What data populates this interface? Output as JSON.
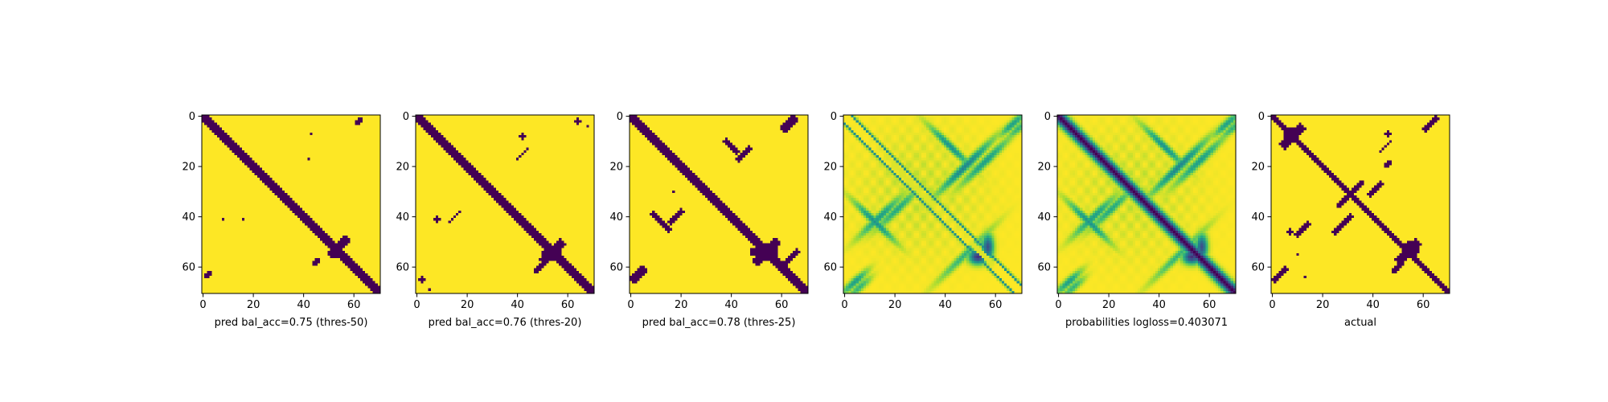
{
  "chart_data": [
    {
      "type": "heatmap",
      "xlabel": "pred bal_acc=0.75 (thres-50)",
      "xticks": [
        0,
        20,
        40,
        60
      ],
      "yticks": [
        0,
        20,
        40,
        60
      ],
      "xlim": [
        0,
        71
      ],
      "ylim": [
        71,
        0
      ],
      "matrix_size": 71,
      "colormap": "viridis",
      "colors": {
        "low": "#440154",
        "high": "#fde725"
      },
      "grid": false,
      "diagonal_band_halfwidth": 2,
      "features": [
        {
          "kind": "band",
          "rc": [
            52,
            54
          ],
          "dir": "anti",
          "len": 5,
          "width": 1.6
        },
        {
          "kind": "block",
          "r": [
            53,
            56
          ],
          "c": [
            52,
            56
          ]
        },
        {
          "kind": "band",
          "rc": [
            58,
            45
          ],
          "dir": "anti",
          "len": 2,
          "width": 1.0
        },
        {
          "kind": "spot",
          "r": 7,
          "c": 43,
          "rad": 0.6
        },
        {
          "kind": "spot",
          "r": 17,
          "c": 42,
          "rad": 0.6
        },
        {
          "kind": "spot",
          "r": 41,
          "c": 8,
          "rad": 0.6
        },
        {
          "kind": "spot",
          "r": 41,
          "c": 16,
          "rad": 0.8
        },
        {
          "kind": "band",
          "rc": [
            63,
            2
          ],
          "dir": "anti",
          "len": 2,
          "width": 1.0
        },
        {
          "kind": "band",
          "rc": [
            2,
            62
          ],
          "dir": "anti",
          "len": 2,
          "width": 1.0
        }
      ]
    },
    {
      "type": "heatmap",
      "xlabel": "pred bal_acc=0.76 (thres-20)",
      "xticks": [
        0,
        20,
        40,
        60
      ],
      "yticks": [
        0,
        20,
        40,
        60
      ],
      "xlim": [
        0,
        71
      ],
      "ylim": [
        71,
        0
      ],
      "matrix_size": 71,
      "colormap": "viridis",
      "colors": {
        "low": "#440154",
        "high": "#fde725"
      },
      "grid": false,
      "diagonal_band_halfwidth": 2.3,
      "features": [
        {
          "kind": "band",
          "rc": [
            54,
            54
          ],
          "dir": "anti",
          "len": 6,
          "width": 1.8
        },
        {
          "kind": "block",
          "r": [
            52,
            57
          ],
          "c": [
            50,
            57
          ]
        },
        {
          "kind": "band",
          "rc": [
            60,
            49
          ],
          "dir": "anti",
          "len": 3,
          "width": 1.0
        },
        {
          "kind": "spot",
          "r": 8,
          "c": 42,
          "rad": 1.0
        },
        {
          "kind": "band",
          "rc": [
            15,
            42
          ],
          "dir": "anti",
          "len": 3,
          "width": 0.7
        },
        {
          "kind": "spot",
          "r": 41,
          "c": 8,
          "rad": 1.0
        },
        {
          "kind": "band",
          "rc": [
            40,
            15
          ],
          "dir": "anti",
          "len": 3,
          "width": 0.7
        },
        {
          "kind": "spot",
          "r": 65,
          "c": 2,
          "rad": 1.0
        },
        {
          "kind": "spot",
          "r": 69,
          "c": 5,
          "rad": 0.6
        },
        {
          "kind": "spot",
          "r": 2,
          "c": 64,
          "rad": 1.0
        },
        {
          "kind": "spot",
          "r": 4,
          "c": 68,
          "rad": 0.6
        }
      ]
    },
    {
      "type": "heatmap",
      "xlabel": "pred bal_acc=0.78 (thres-25)",
      "xticks": [
        0,
        20,
        40,
        60
      ],
      "yticks": [
        0,
        20,
        40,
        60
      ],
      "xlim": [
        0,
        71
      ],
      "ylim": [
        71,
        0
      ],
      "matrix_size": 71,
      "colormap": "viridis",
      "colors": {
        "low": "#440154",
        "high": "#fde725"
      },
      "grid": false,
      "diagonal_band_halfwidth": 2.5,
      "features": [
        {
          "kind": "band",
          "rc": [
            54,
            54
          ],
          "dir": "anti",
          "len": 7,
          "width": 2.0
        },
        {
          "kind": "block",
          "r": [
            51,
            57
          ],
          "c": [
            48,
            58
          ]
        },
        {
          "kind": "band",
          "rc": [
            57,
            63
          ],
          "dir": "anti",
          "len": 5,
          "width": 0.8
        },
        {
          "kind": "band",
          "rc": [
            12,
            40
          ],
          "dir": "diag",
          "len": 4,
          "width": 1.2
        },
        {
          "kind": "band",
          "rc": [
            15,
            45
          ],
          "dir": "anti",
          "len": 4,
          "width": 0.8
        },
        {
          "kind": "band",
          "rc": [
            42,
            12
          ],
          "dir": "diag",
          "len": 5,
          "width": 1.2
        },
        {
          "kind": "band",
          "rc": [
            40,
            18
          ],
          "dir": "anti",
          "len": 4,
          "width": 0.8
        },
        {
          "kind": "spot",
          "r": 30,
          "c": 17,
          "rad": 0.8
        },
        {
          "kind": "band",
          "rc": [
            63,
            3
          ],
          "dir": "anti",
          "len": 4,
          "width": 1.5
        },
        {
          "kind": "band",
          "rc": [
            3,
            63
          ],
          "dir": "anti",
          "len": 4,
          "width": 1.5
        }
      ]
    },
    {
      "type": "heatmap",
      "xlabel": "",
      "xticks": [
        0,
        20,
        40,
        60
      ],
      "yticks": [
        0,
        20,
        40,
        60
      ],
      "xlim": [
        0,
        71
      ],
      "ylim": [
        71,
        0
      ],
      "matrix_size": 71,
      "colormap": "viridis",
      "colors": {
        "low": "#440154",
        "high": "#fde725"
      },
      "grid": false,
      "diagonal_band_halfwidth": 0
    },
    {
      "type": "heatmap",
      "xlabel": "probabilities logloss=0.403071",
      "xticks": [
        0,
        20,
        40,
        60
      ],
      "yticks": [
        0,
        20,
        40,
        60
      ],
      "xlim": [
        0,
        71
      ],
      "ylim": [
        71,
        0
      ],
      "matrix_size": 71,
      "colormap": "viridis",
      "colors": {
        "low": "#440154",
        "high": "#fde725"
      },
      "grid": false,
      "diagonal_band_halfwidth": 3.5
    },
    {
      "type": "heatmap",
      "xlabel": "actual",
      "xticks": [
        0,
        20,
        40,
        60
      ],
      "yticks": [
        0,
        20,
        40,
        60
      ],
      "xlim": [
        0,
        71
      ],
      "ylim": [
        71,
        0
      ],
      "matrix_size": 71,
      "colormap": "viridis",
      "colors": {
        "low": "#440154",
        "high": "#fde725"
      },
      "grid": false,
      "diagonal_band_halfwidth": 1.8,
      "features": [
        {
          "kind": "band",
          "rc": [
            8,
            8
          ],
          "dir": "anti",
          "len": 6,
          "width": 1.6
        },
        {
          "kind": "block",
          "r": [
            5,
            10
          ],
          "c": [
            5,
            10
          ]
        },
        {
          "kind": "band",
          "rc": [
            28,
            34
          ],
          "dir": "anti",
          "len": 3,
          "width": 1.2
        },
        {
          "kind": "band",
          "rc": [
            34,
            28
          ],
          "dir": "anti",
          "len": 3,
          "width": 1.2
        },
        {
          "kind": "band",
          "rc": [
            54,
            54
          ],
          "dir": "anti",
          "len": 6,
          "width": 1.8
        },
        {
          "kind": "block",
          "r": [
            50,
            56
          ],
          "c": [
            52,
            58
          ]
        },
        {
          "kind": "band",
          "rc": [
            12,
            45
          ],
          "dir": "anti",
          "len": 4,
          "width": 0.7
        },
        {
          "kind": "spot",
          "r": 7,
          "c": 47,
          "rad": 0.8
        },
        {
          "kind": "spot",
          "r": 7,
          "c": 45,
          "rad": 0.8
        },
        {
          "kind": "band",
          "rc": [
            19,
            46
          ],
          "dir": "anti",
          "len": 2,
          "width": 0.9
        },
        {
          "kind": "band",
          "rc": [
            45,
            12
          ],
          "dir": "anti",
          "len": 4,
          "width": 0.8
        },
        {
          "kind": "band",
          "rc": [
            43,
            28
          ],
          "dir": "anti",
          "len": 5,
          "width": 1.0
        },
        {
          "kind": "band",
          "rc": [
            29,
            41
          ],
          "dir": "anti",
          "len": 4,
          "width": 1.0
        },
        {
          "kind": "band",
          "rc": [
            60,
            50
          ],
          "dir": "anti",
          "len": 3,
          "width": 0.8
        },
        {
          "kind": "spot",
          "r": 64,
          "c": 13,
          "rad": 0.6
        },
        {
          "kind": "spot",
          "r": 55,
          "c": 10,
          "rad": 0.6
        },
        {
          "kind": "band",
          "rc": [
            63,
            3
          ],
          "dir": "anti",
          "len": 4,
          "width": 1.2
        },
        {
          "kind": "band",
          "rc": [
            3,
            63
          ],
          "dir": "anti",
          "len": 4,
          "width": 1.2
        },
        {
          "kind": "spot",
          "r": 46,
          "c": 7,
          "rad": 1.0
        },
        {
          "kind": "spot",
          "r": 7,
          "c": 46,
          "rad": 1.0
        }
      ]
    }
  ]
}
